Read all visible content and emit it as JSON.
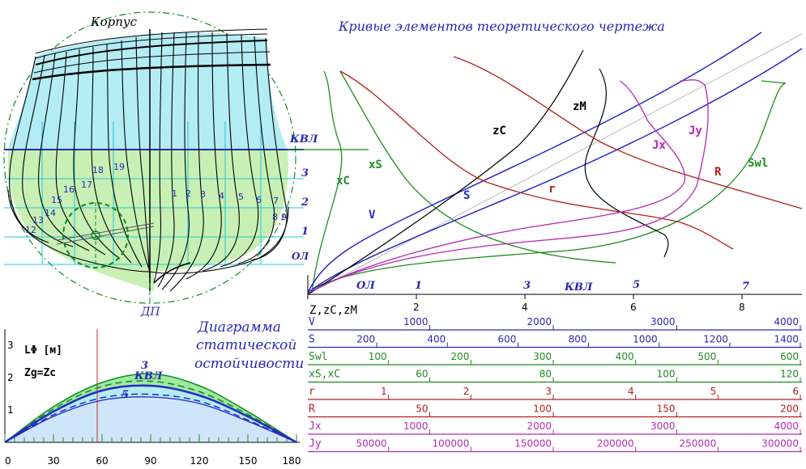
{
  "hull": {
    "title": "Корпус",
    "centerline_label": "ДП",
    "dwl_label": "КВЛ",
    "baseline_label": "ОЛ",
    "waterline_numbers": [
      "1",
      "2",
      "3"
    ],
    "stern_stations": [
      "1",
      "2",
      "3",
      "4",
      "5",
      "6",
      "7",
      "8",
      "9"
    ],
    "bow_stations": [
      "12",
      "13",
      "14",
      "15",
      "16",
      "17",
      "18",
      "19"
    ],
    "colors": {
      "underwater": "#c8f0b4",
      "topside": "#b4ecf4",
      "grid": "#1ec8dc",
      "frames": "#000000",
      "circle": "#0a8c1e",
      "blue": "#2828b4"
    }
  },
  "curves_title": "Кривые элементов теоретического чертежа",
  "curves": {
    "x_axis_label": "Z,zC,zM",
    "x_ticks": [
      "2",
      "4",
      "6",
      "8"
    ],
    "bottom_labels": [
      "ОЛ",
      "1",
      "3",
      "КВЛ",
      "5",
      "7"
    ],
    "curve_labels": {
      "zC": "zC",
      "zM": "zM",
      "xS": "xS",
      "xC": "xC",
      "V": "V",
      "S": "S",
      "r": "r",
      "Jx": "Jx",
      "Jy": "Jy",
      "R": "R",
      "Swl": "Swl"
    },
    "colors": {
      "V": "#2828c8",
      "S": "#2828c8",
      "Swl": "#1e8c1e",
      "xS": "#1e8c1e",
      "r": "#b41e1e",
      "R": "#b41e1e",
      "Jx": "#b428b4",
      "Jy": "#b428b4",
      "zC": "#000000"
    }
  },
  "scales": [
    {
      "name": "V",
      "color": "#2828b4",
      "labels": [
        "1000",
        "2000",
        "3000",
        "4000"
      ]
    },
    {
      "name": "S",
      "color": "#2828b4",
      "labels": [
        "200",
        "400",
        "600",
        "800",
        "1000",
        "1200",
        "1400"
      ]
    },
    {
      "name": "Swl",
      "color": "#1e8c1e",
      "labels": [
        "100",
        "200",
        "300",
        "400",
        "500",
        "600"
      ]
    },
    {
      "name": "xS,xC",
      "color": "#1e8c1e",
      "labels": [
        "60",
        "80",
        "100",
        "120"
      ]
    },
    {
      "name": "r",
      "color": "#b41e1e",
      "labels": [
        "1",
        "2",
        "3",
        "4",
        "5",
        "6"
      ]
    },
    {
      "name": "R",
      "color": "#b41e1e",
      "labels": [
        "50",
        "100",
        "150",
        "200"
      ]
    },
    {
      "name": "Jx",
      "color": "#b428b4",
      "labels": [
        "1000",
        "2000",
        "3000",
        "4000"
      ]
    },
    {
      "name": "Jy",
      "color": "#b428b4",
      "labels": [
        "50000",
        "100000",
        "150000",
        "200000",
        "250000",
        "300000"
      ]
    }
  ],
  "stability": {
    "title_lines": [
      "Диаграмма",
      "статической",
      "остойчивости"
    ],
    "ylabel": "LΦ [м]",
    "condition": "Zg=Zc",
    "y_ticks": [
      "1",
      "2",
      "3"
    ],
    "x_ticks": [
      "0",
      "30",
      "60",
      "90",
      "120",
      "150",
      "180"
    ],
    "curve_labels": [
      "3",
      "КВЛ",
      "5"
    ],
    "chart_data": {
      "type": "line",
      "xlim": [
        0,
        180
      ],
      "ylim": [
        0,
        3
      ],
      "series": [
        {
          "name": "3",
          "x": [
            0,
            30,
            60,
            90,
            120,
            150,
            180
          ],
          "y": [
            0,
            1.1,
            1.85,
            2.12,
            1.75,
            0.95,
            0
          ]
        },
        {
          "name": "КВЛ",
          "x": [
            0,
            30,
            60,
            90,
            120,
            150,
            180
          ],
          "y": [
            0,
            0.95,
            1.6,
            1.75,
            1.45,
            0.8,
            0
          ]
        },
        {
          "name": "5",
          "x": [
            0,
            30,
            60,
            90,
            120,
            150,
            180
          ],
          "y": [
            0,
            0.8,
            1.3,
            1.4,
            1.2,
            0.65,
            0
          ]
        }
      ],
      "marker_x": 57
    }
  }
}
